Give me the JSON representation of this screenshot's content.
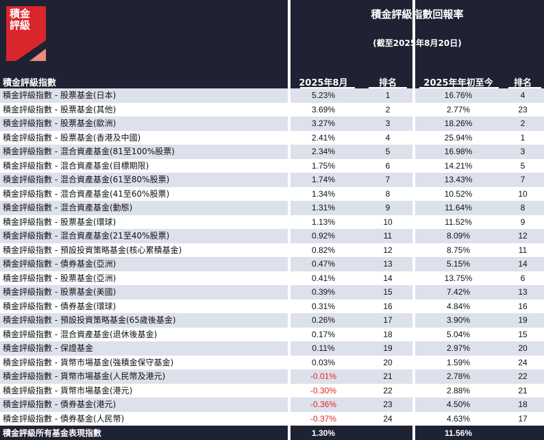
{
  "logo": {
    "line1": "積金",
    "line2": "評級"
  },
  "header": {
    "title": "積金評級指數回報率",
    "subtitle": "(截至2025年8月20日)",
    "col_name": "積金評級指數",
    "col_month": "2025年8月",
    "col_month_rank": "排名",
    "col_ytd": "2025年年初至今",
    "col_ytd_rank": "排名"
  },
  "rows": [
    {
      "name": "積金評級指數 - 股票基金(日本)",
      "month": "5.23%",
      "mrank": "1",
      "ytd": "16.76%",
      "yrank": "4"
    },
    {
      "name": "積金評級指數 - 股票基金(其他)",
      "month": "3.69%",
      "mrank": "2",
      "ytd": "2.77%",
      "yrank": "23"
    },
    {
      "name": "積金評級指數 - 股票基金(歐洲)",
      "month": "3.27%",
      "mrank": "3",
      "ytd": "18.26%",
      "yrank": "2"
    },
    {
      "name": "積金評級指數 - 股票基金(香港及中國)",
      "month": "2.41%",
      "mrank": "4",
      "ytd": "25.94%",
      "yrank": "1"
    },
    {
      "name": "積金評級指數 - 混合資產基金(81至100%股票)",
      "month": "2.34%",
      "mrank": "5",
      "ytd": "16.98%",
      "yrank": "3"
    },
    {
      "name": "積金評級指數 - 混合資產基金(目標期限)",
      "month": "1.75%",
      "mrank": "6",
      "ytd": "14.21%",
      "yrank": "5"
    },
    {
      "name": "積金評級指數 - 混合資產基金(61至80%股票)",
      "month": "1.74%",
      "mrank": "7",
      "ytd": "13.43%",
      "yrank": "7"
    },
    {
      "name": "積金評級指數 - 混合資產基金(41至60%股票)",
      "month": "1.34%",
      "mrank": "8",
      "ytd": "10.52%",
      "yrank": "10"
    },
    {
      "name": "積金評級指數 - 混合資產基金(動態)",
      "month": "1.31%",
      "mrank": "9",
      "ytd": "11.64%",
      "yrank": "8"
    },
    {
      "name": "積金評級指數 - 股票基金(環球)",
      "month": "1.13%",
      "mrank": "10",
      "ytd": "11.52%",
      "yrank": "9"
    },
    {
      "name": "積金評級指數 - 混合資產基金(21至40%股票)",
      "month": "0.92%",
      "mrank": "11",
      "ytd": "8.09%",
      "yrank": "12"
    },
    {
      "name": "積金評級指數 - 預設投資策略基金(核心累積基金)",
      "month": "0.82%",
      "mrank": "12",
      "ytd": "8.75%",
      "yrank": "11"
    },
    {
      "name": "積金評級指數 - 債券基金(亞洲)",
      "month": "0.47%",
      "mrank": "13",
      "ytd": "5.15%",
      "yrank": "14"
    },
    {
      "name": "積金評級指數 - 股票基金(亞洲)",
      "month": "0.41%",
      "mrank": "14",
      "ytd": "13.75%",
      "yrank": "6"
    },
    {
      "name": "積金評級指數 - 股票基金(美國)",
      "month": "0.39%",
      "mrank": "15",
      "ytd": "7.42%",
      "yrank": "13"
    },
    {
      "name": "積金評級指數 - 債券基金(環球)",
      "month": "0.31%",
      "mrank": "16",
      "ytd": "4.84%",
      "yrank": "16"
    },
    {
      "name": "積金評級指數 - 預設投資策略基金(65歲後基金)",
      "month": "0.26%",
      "mrank": "17",
      "ytd": "3.90%",
      "yrank": "19"
    },
    {
      "name": "積金評級指數 - 混合資產基金(退休後基金)",
      "month": "0.17%",
      "mrank": "18",
      "ytd": "5.04%",
      "yrank": "15"
    },
    {
      "name": "積金評級指數 - 保證基金",
      "month": "0.11%",
      "mrank": "19",
      "ytd": "2.97%",
      "yrank": "20"
    },
    {
      "name": "積金評級指數 - 貨幣市場基金(強積金保守基金)",
      "month": "0.03%",
      "mrank": "20",
      "ytd": "1.59%",
      "yrank": "24"
    },
    {
      "name": "積金評級指數 - 貨幣市場基金(人民幣及港元)",
      "month": "-0.01%",
      "mrank": "21",
      "ytd": "2.78%",
      "yrank": "22"
    },
    {
      "name": "積金評級指數 - 貨幣市場基金(港元)",
      "month": "-0.30%",
      "mrank": "22",
      "ytd": "2.88%",
      "yrank": "21"
    },
    {
      "name": "積金評級指數 - 債券基金(港元)",
      "month": "-0.36%",
      "mrank": "23",
      "ytd": "4.50%",
      "yrank": "18"
    },
    {
      "name": "積金評級指數 - 債券基金(人民幣)",
      "month": "-0.37%",
      "mrank": "24",
      "ytd": "4.63%",
      "yrank": "17"
    }
  ],
  "footer": {
    "name": "積金評級所有基金表現指數",
    "month": "1.30%",
    "ytd": "11.56%"
  },
  "colors": {
    "header_bg": "#1f2233",
    "band": "#dde1ec",
    "negative": "#e0281e",
    "logo_red": "#d9262c",
    "logo_pink": "#f08a7c"
  }
}
